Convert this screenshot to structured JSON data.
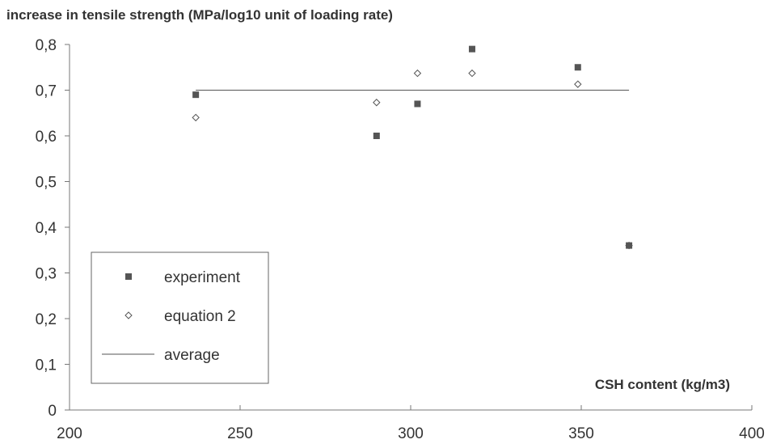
{
  "chart_data": {
    "type": "scatter",
    "title": "increase in tensile strength (MPa/log10 unit of loading rate)",
    "xlabel": "CSH content (kg/m3)",
    "ylabel": "",
    "xlim": [
      200,
      400
    ],
    "ylim": [
      0,
      0.8
    ],
    "x_ticks": [
      200,
      250,
      300,
      350,
      400
    ],
    "x_tick_labels": [
      "200",
      "250",
      "300",
      "350",
      "400"
    ],
    "y_ticks": [
      0,
      0.1,
      0.2,
      0.3,
      0.4,
      0.5,
      0.6,
      0.7,
      0.8
    ],
    "y_tick_labels": [
      "0",
      "0,1",
      "0,2",
      "0,3",
      "0,4",
      "0,5",
      "0,6",
      "0,7",
      "0,8"
    ],
    "grid": false,
    "legend_position": "bottom-left",
    "series": [
      {
        "name": "experiment",
        "marker": "filled-square",
        "color": "#555555",
        "points": [
          [
            237,
            0.69
          ],
          [
            290,
            0.6
          ],
          [
            302,
            0.67
          ],
          [
            318,
            0.79
          ],
          [
            349,
            0.75
          ],
          [
            364,
            0.36
          ]
        ]
      },
      {
        "name": "equation 2",
        "marker": "open-diamond",
        "color": "#555555",
        "points": [
          [
            237,
            0.64
          ],
          [
            290,
            0.673
          ],
          [
            302,
            0.737
          ],
          [
            318,
            0.737
          ],
          [
            349,
            0.713
          ],
          [
            364,
            0.36
          ]
        ]
      },
      {
        "name": "average",
        "marker": "line",
        "color": "#555555",
        "points": [
          [
            237,
            0.7
          ],
          [
            364,
            0.7
          ]
        ]
      }
    ]
  }
}
